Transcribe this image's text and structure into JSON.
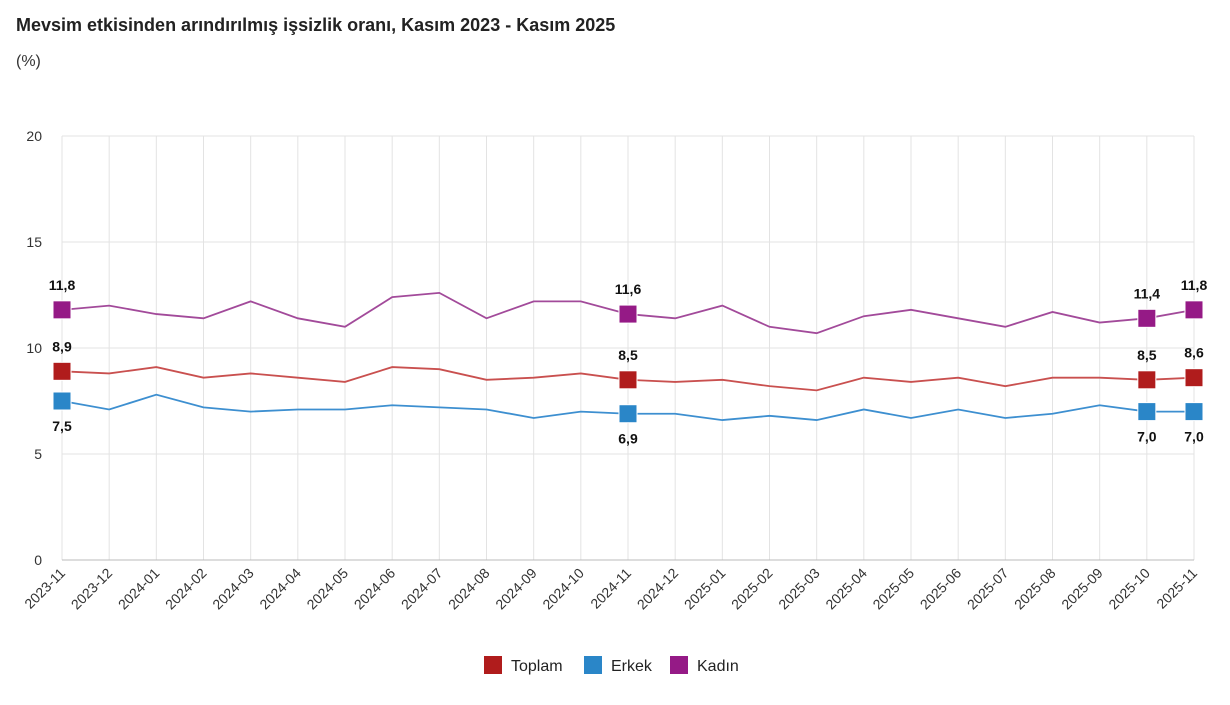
{
  "chart_data": {
    "type": "line",
    "title": "Mevsim etkisinden arındırılmış işsizlik oranı, Kasım 2023 - Kasım 2025",
    "subtitle": "(%)",
    "xlabel": "",
    "ylabel": "",
    "ylim": [
      0,
      20
    ],
    "yticks": [
      "0",
      "5",
      "10",
      "15",
      "20"
    ],
    "grid": true,
    "legend_position": "bottom",
    "categories": [
      "2023-11",
      "2023-12",
      "2024-01",
      "2024-02",
      "2024-03",
      "2024-04",
      "2024-05",
      "2024-06",
      "2024-07",
      "2024-08",
      "2024-09",
      "2024-10",
      "2024-11",
      "2024-12",
      "2025-01",
      "2025-02",
      "2025-03",
      "2025-04",
      "2025-05",
      "2025-06",
      "2025-07",
      "2025-08",
      "2025-09",
      "2025-10",
      "2025-11"
    ],
    "labeled_indices": [
      0,
      12,
      23,
      24
    ],
    "series": [
      {
        "name": "Toplam",
        "color": "#b01c1c",
        "line_color": "#c9504f",
        "label_position": "above",
        "values": [
          8.9,
          8.8,
          9.1,
          8.6,
          8.8,
          8.6,
          8.4,
          9.1,
          9.0,
          8.5,
          8.6,
          8.8,
          8.5,
          8.4,
          8.5,
          8.2,
          8.0,
          8.6,
          8.4,
          8.6,
          8.2,
          8.6,
          8.6,
          8.5,
          8.6
        ],
        "labels": [
          "8,9",
          "8,5",
          "8,5",
          "8,6"
        ]
      },
      {
        "name": "Erkek",
        "color": "#2a86c8",
        "line_color": "#3d8fd0",
        "label_position": "below",
        "values": [
          7.5,
          7.1,
          7.8,
          7.2,
          7.0,
          7.1,
          7.1,
          7.3,
          7.2,
          7.1,
          6.7,
          7.0,
          6.9,
          6.9,
          6.6,
          6.8,
          6.6,
          7.1,
          6.7,
          7.1,
          6.7,
          6.9,
          7.3,
          7.0,
          7.0
        ],
        "labels": [
          "7,5",
          "6,9",
          "7,0",
          "7,0"
        ]
      },
      {
        "name": "Kadın",
        "color": "#951a86",
        "line_color": "#a24a9a",
        "label_position": "above",
        "values": [
          11.8,
          12.0,
          11.6,
          11.4,
          12.2,
          11.4,
          11.0,
          12.4,
          12.6,
          11.4,
          12.2,
          12.2,
          11.6,
          11.4,
          12.0,
          11.0,
          10.7,
          11.5,
          11.8,
          11.4,
          11.0,
          11.7,
          11.2,
          11.4,
          11.8
        ],
        "labels": [
          "11,8",
          "11,6",
          "11,4",
          "11,8"
        ]
      }
    ]
  }
}
